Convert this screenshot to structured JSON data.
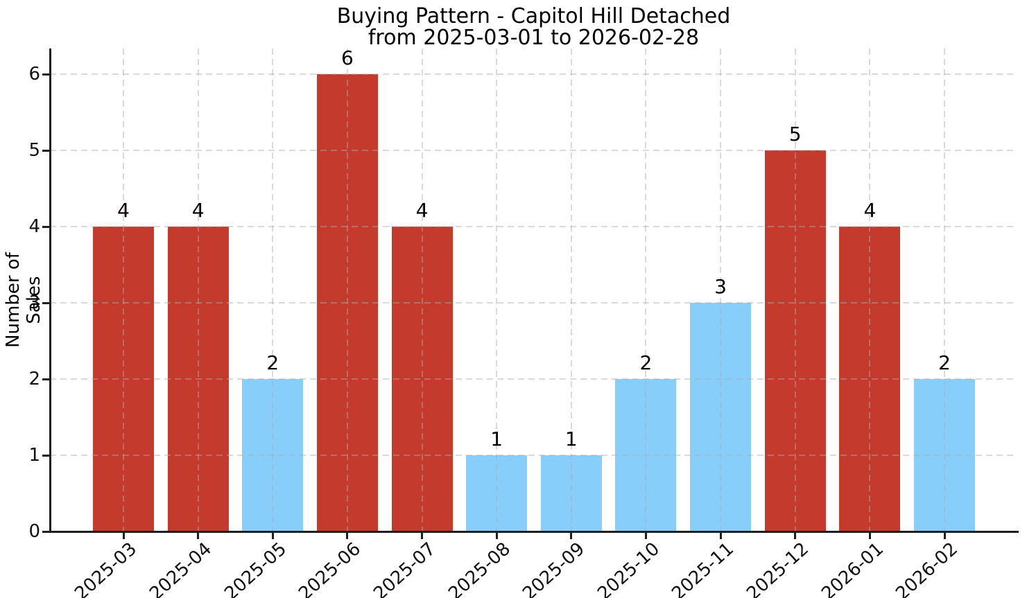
{
  "title": {
    "line1": "Buying Pattern - Capitol Hill Detached",
    "line2": "from 2025-03-01 to 2026-02-28"
  },
  "chart_data": {
    "type": "bar",
    "title": "Buying Pattern - Capitol Hill Detached",
    "subtitle": "from 2025-03-01 to 2026-02-28",
    "categories": [
      "2025-03",
      "2025-04",
      "2025-05",
      "2025-06",
      "2025-07",
      "2025-08",
      "2025-09",
      "2025-10",
      "2025-11",
      "2025-12",
      "2026-01",
      "2026-02"
    ],
    "values": [
      4,
      4,
      2,
      6,
      4,
      1,
      1,
      2,
      3,
      5,
      4,
      2
    ],
    "bar_colors": [
      "#c43a2c",
      "#c43a2c",
      "#87cefa",
      "#c43a2c",
      "#c43a2c",
      "#87cefa",
      "#87cefa",
      "#87cefa",
      "#87cefa",
      "#c43a2c",
      "#c43a2c",
      "#87cefa"
    ],
    "colors": {
      "high_months": "#c43a2c",
      "low_months": "#87cefa"
    },
    "xlabel": "",
    "ylabel": "Number of Sales",
    "yticks": [
      0,
      1,
      2,
      3,
      4,
      5,
      6
    ],
    "ylim": [
      0,
      6.34
    ],
    "grid": true,
    "grid_style": "dashed",
    "legend_position": "none",
    "value_labels_shown": true
  }
}
